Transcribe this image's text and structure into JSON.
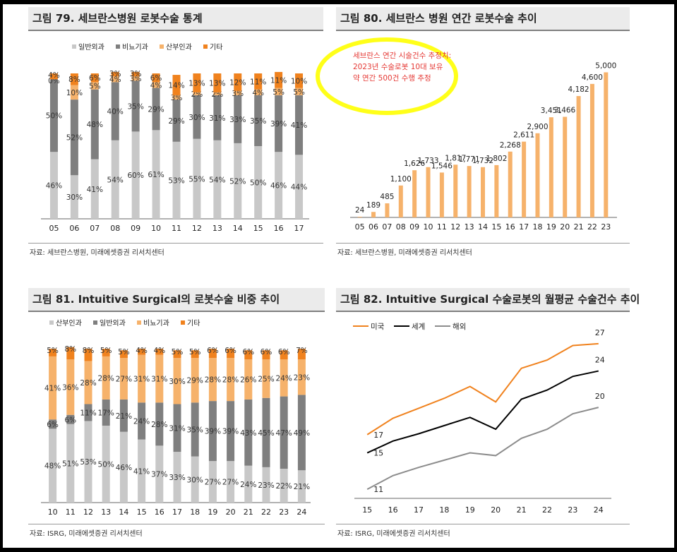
{
  "panels": {
    "p79": {
      "title": "그림 79. 세브란스병원 로봇수술 통계",
      "source": "자료: 세브란스병원, 미래에셋증권 리서치센터"
    },
    "p80": {
      "title": "그림 80. 세브란스 병원 연간 로봇수술 추이",
      "source": "자료: 세브란스병원, 미래에셋증권 리서치센터",
      "annotation": [
        "세브란스 연간 시술건수 추정치:",
        "2023년 수술로봇 10대 보유",
        "약 연간 500건 수행 추정"
      ]
    },
    "p81": {
      "title": "그림 81. Intuitive Surgical의 로봇수술 비중 추이",
      "source": "자료: ISRG, 미래에셋증권 리서치센터"
    },
    "p82": {
      "title": "그림 82. Intuitive Surgical 수술로봇의 월평균 수술건수 추이",
      "source": "자료: ISRG, 미래에셋증권 리서치센터"
    }
  },
  "colors": {
    "gray_light": "#c8c8c8",
    "gray_dark": "#7f7f7f",
    "orange_light": "#f6b26b",
    "orange": "#f0821e",
    "highlight": "#ffff00",
    "annotation_text": "#e53935",
    "us_line": "#f0821e",
    "world_line": "#000000",
    "overseas_line": "#8c8c8c"
  },
  "chart_data": [
    {
      "type": "bar",
      "stacked": true,
      "categories": [
        "05",
        "06",
        "07",
        "08",
        "09",
        "10",
        "11",
        "12",
        "13",
        "14",
        "15",
        "16",
        "17"
      ],
      "series": [
        {
          "name": "일반외과",
          "values": [
            46,
            30,
            41,
            54,
            60,
            61,
            53,
            55,
            54,
            52,
            50,
            46,
            44
          ]
        },
        {
          "name": "비뇨기과",
          "values": [
            50,
            52,
            48,
            40,
            35,
            29,
            29,
            30,
            31,
            33,
            35,
            39,
            41
          ]
        },
        {
          "name": "산부인과",
          "values": [
            0,
            10,
            5,
            4,
            3,
            4,
            3,
            2,
            2,
            3,
            4,
            5,
            5
          ]
        },
        {
          "name": "기타",
          "values": [
            4,
            8,
            6,
            3,
            3,
            6,
            14,
            13,
            13,
            12,
            11,
            11,
            10
          ]
        }
      ],
      "ylim": [
        0,
        100
      ],
      "legend": "top"
    },
    {
      "type": "bar",
      "categories": [
        "05",
        "06",
        "07",
        "08",
        "09",
        "10",
        "11",
        "12",
        "13",
        "14",
        "15",
        "16",
        "17",
        "18",
        "19",
        "20",
        "21",
        "22",
        "23"
      ],
      "values": [
        24,
        189,
        485,
        1100,
        1626,
        1733,
        1546,
        1817,
        1771,
        1732,
        1802,
        2268,
        2611,
        2900,
        3451,
        3466,
        4182,
        4600,
        5000
      ],
      "value_labels": [
        "24",
        "189",
        "485",
        "1,100",
        "1,626",
        "1,733",
        "1,546",
        "1,817",
        "1,771",
        "1,732",
        "1,802",
        "2,268",
        "2,611",
        "2,900",
        "3,451",
        "3,466",
        "4,182",
        "4,600",
        "5,000"
      ],
      "ylim": [
        0,
        5400
      ]
    },
    {
      "type": "bar",
      "stacked": true,
      "categories": [
        "10",
        "11",
        "12",
        "13",
        "14",
        "15",
        "16",
        "17",
        "18",
        "19",
        "20",
        "21",
        "22",
        "23",
        "24"
      ],
      "series": [
        {
          "name": "산부인과",
          "values": [
            48,
            51,
            53,
            50,
            46,
            41,
            37,
            33,
            30,
            27,
            27,
            24,
            23,
            22,
            21
          ]
        },
        {
          "name": "일반외과",
          "values": [
            6,
            6,
            11,
            17,
            21,
            24,
            28,
            31,
            35,
            39,
            39,
            43,
            45,
            47,
            49
          ]
        },
        {
          "name": "비뇨기과",
          "values": [
            41,
            36,
            28,
            28,
            27,
            31,
            31,
            30,
            29,
            28,
            28,
            26,
            25,
            24,
            23
          ]
        },
        {
          "name": "기타",
          "values": [
            5,
            8,
            8,
            5,
            5,
            4,
            4,
            5,
            5,
            6,
            6,
            6,
            6,
            6,
            7
          ]
        }
      ],
      "ylim": [
        0,
        100
      ],
      "legend": "top"
    },
    {
      "type": "line",
      "x": [
        "15",
        "16",
        "17",
        "18",
        "19",
        "20",
        "21",
        "22",
        "23",
        "24"
      ],
      "series": [
        {
          "name": "미국",
          "values": [
            17,
            18.8,
            19.9,
            21,
            22.3,
            20.6,
            24.3,
            25.2,
            26.8,
            27
          ]
        },
        {
          "name": "세계",
          "values": [
            15,
            16.3,
            17.1,
            18,
            18.9,
            17.6,
            20.9,
            21.9,
            23.4,
            24
          ]
        },
        {
          "name": "해외",
          "values": [
            11,
            12.5,
            13.4,
            14.2,
            15,
            14.7,
            16.6,
            17.6,
            19.3,
            20
          ]
        }
      ],
      "end_labels": {
        "미국": {
          "start": "17",
          "end": "27"
        },
        "세계": {
          "start": "15",
          "end": "24"
        },
        "해외": {
          "start": "11",
          "end": "20"
        }
      },
      "ylim": [
        10,
        28
      ],
      "legend": "top-left"
    }
  ]
}
